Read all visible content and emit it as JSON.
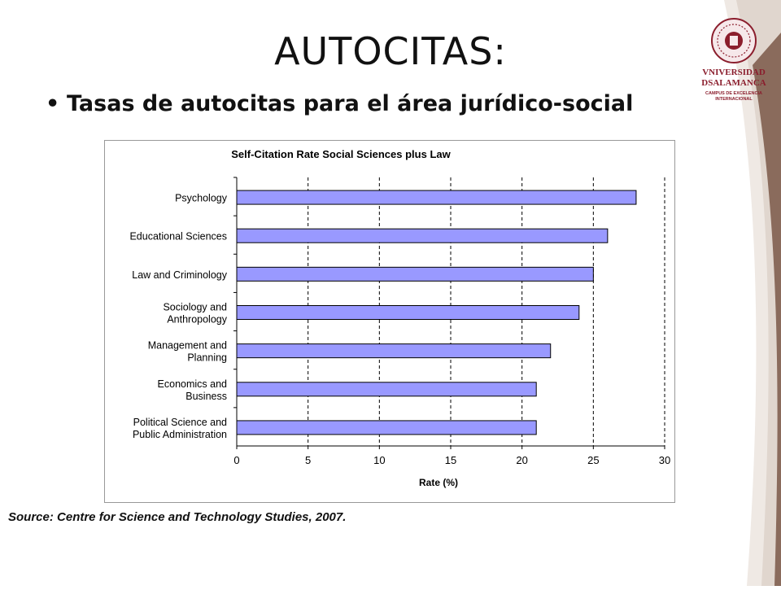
{
  "slide": {
    "title": "AUTOCITAS:",
    "bullet_char": "•",
    "bullet_text": "Tasas de autocitas para el área jurídico-social",
    "source": "Source: Centre for Science and Technology Studies, 2007."
  },
  "logo": {
    "line1": "VNIVERSIDAD",
    "line2": "DSALAMANCA",
    "line3": "CAMPUS DE EXCELENCIA",
    "line4": "INTERNACIONAL",
    "color": "#8b1e2d"
  },
  "chart_data": {
    "type": "bar",
    "orientation": "horizontal",
    "title": "Self-Citation Rate Social Sciences plus Law",
    "xlabel": "Rate (%)",
    "ylabel": "",
    "xlim": [
      0,
      30
    ],
    "xticks": [
      "0",
      "5",
      "10",
      "15",
      "20",
      "25",
      "30"
    ],
    "grid": "vertical dashed",
    "bar_color": "#9999ff",
    "categories": [
      [
        "Psychology"
      ],
      [
        "Educational Sciences"
      ],
      [
        "Law and Criminology"
      ],
      [
        "Sociology and",
        "Anthropology"
      ],
      [
        "Management and",
        "Planning"
      ],
      [
        "Economics and",
        "Business"
      ],
      [
        "Political Science and",
        "Public Administration"
      ]
    ],
    "values": [
      28,
      26,
      25,
      24,
      22,
      21,
      21
    ]
  }
}
